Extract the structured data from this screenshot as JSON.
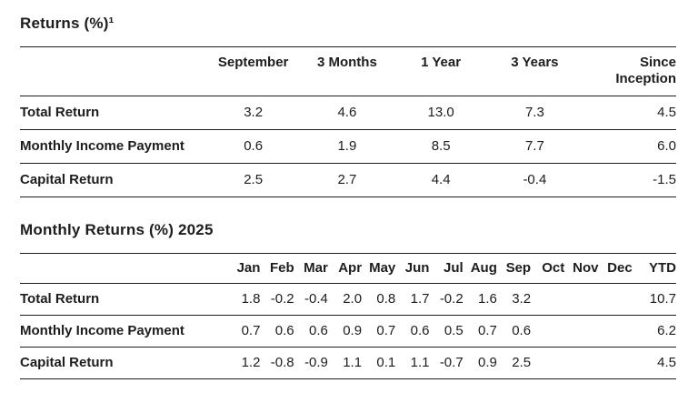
{
  "colors": {
    "background": "#ffffff",
    "text": "#1d1d1b",
    "line": "#1d1d1b"
  },
  "returns_table": {
    "title": "Returns (%)¹",
    "columns": [
      "September",
      "3 Months",
      "1 Year",
      "3 Years",
      "Since Inception"
    ],
    "rows": [
      {
        "label": "Total Return",
        "values": [
          "3.2",
          "4.6",
          "13.0",
          "7.3",
          "4.5"
        ]
      },
      {
        "label": "Monthly Income Payment",
        "values": [
          "0.6",
          "1.9",
          "8.5",
          "7.7",
          "6.0"
        ]
      },
      {
        "label": "Capital Return",
        "values": [
          "2.5",
          "2.7",
          "4.4",
          "-0.4",
          "-1.5"
        ]
      }
    ]
  },
  "monthly_table": {
    "title": "Monthly Returns (%) 2025",
    "columns": [
      "Jan",
      "Feb",
      "Mar",
      "Apr",
      "May",
      "Jun",
      "Jul",
      "Aug",
      "Sep",
      "Oct",
      "Nov",
      "Dec",
      "YTD"
    ],
    "rows": [
      {
        "label": "Total Return",
        "values": [
          "1.8",
          "-0.2",
          "-0.4",
          "2.0",
          "0.8",
          "1.7",
          "-0.2",
          "1.6",
          "3.2",
          "",
          "",
          "",
          "10.7"
        ]
      },
      {
        "label": "Monthly Income Payment",
        "values": [
          "0.7",
          "0.6",
          "0.6",
          "0.9",
          "0.7",
          "0.6",
          "0.5",
          "0.7",
          "0.6",
          "",
          "",
          "",
          "6.2"
        ]
      },
      {
        "label": "Capital Return",
        "values": [
          "1.2",
          "-0.8",
          "-0.9",
          "1.1",
          "0.1",
          "1.1",
          "-0.7",
          "0.9",
          "2.5",
          "",
          "",
          "",
          "4.5"
        ]
      }
    ]
  }
}
